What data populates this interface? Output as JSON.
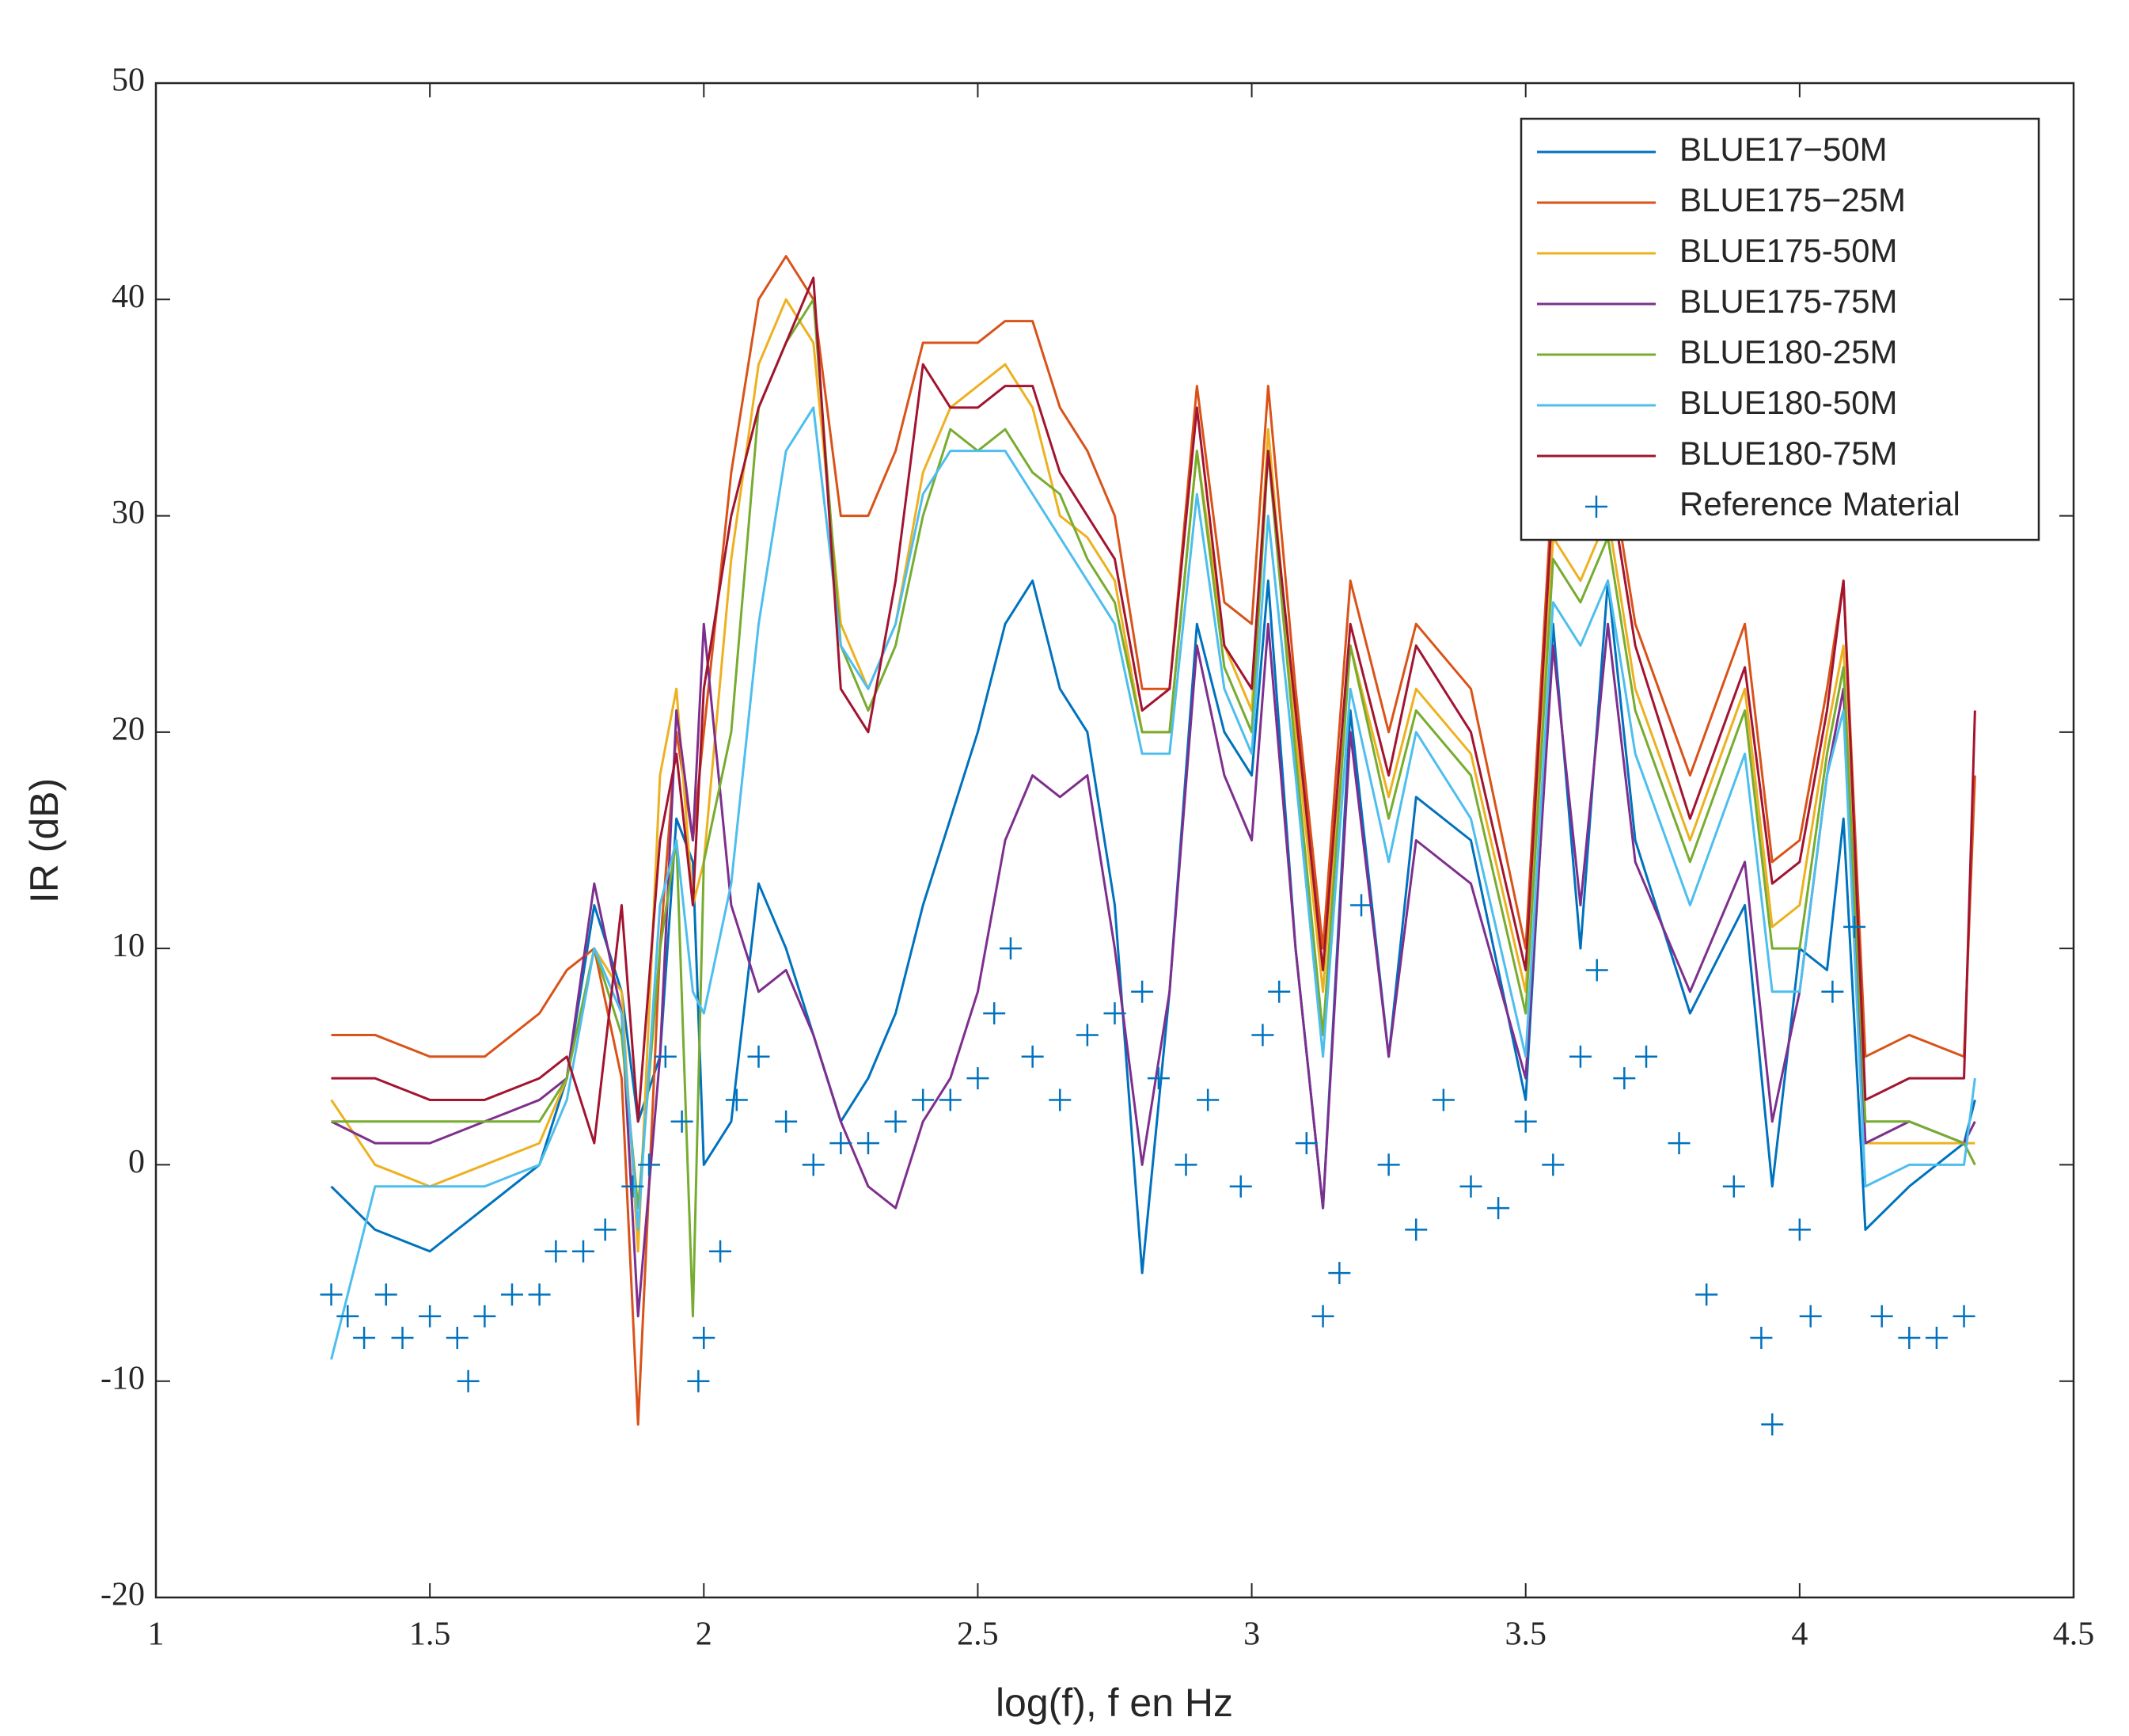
{
  "chart_data": {
    "type": "line",
    "xlabel": "log(f), f en Hz",
    "ylabel": "IR (dB)",
    "xlim": [
      1,
      4.5
    ],
    "xticks": [
      1,
      1.5,
      2,
      2.5,
      3,
      3.5,
      4,
      4.5
    ],
    "ylim": [
      -20,
      50
    ],
    "yticks": [
      -20,
      -10,
      0,
      10,
      20,
      30,
      40,
      50
    ],
    "legend": "upper right",
    "x": [
      1.32,
      1.4,
      1.5,
      1.6,
      1.7,
      1.75,
      1.8,
      1.85,
      1.88,
      1.92,
      1.95,
      1.98,
      2.0,
      2.05,
      2.1,
      2.15,
      2.2,
      2.25,
      2.3,
      2.35,
      2.4,
      2.45,
      2.5,
      2.55,
      2.6,
      2.65,
      2.7,
      2.75,
      2.8,
      2.85,
      2.9,
      2.95,
      3.0,
      3.03,
      3.08,
      3.13,
      3.18,
      3.25,
      3.3,
      3.4,
      3.5,
      3.55,
      3.6,
      3.65,
      3.7,
      3.8,
      3.9,
      3.95,
      4.0,
      4.05,
      4.08,
      4.12,
      4.2,
      4.3,
      4.32
    ],
    "series": [
      {
        "name": "BLUE17−50M",
        "color": "#0072bd",
        "values": [
          -1,
          -3,
          -4,
          -2,
          0,
          4,
          12,
          8,
          2,
          5,
          16,
          14,
          0,
          2,
          13,
          10,
          6,
          2,
          4,
          7,
          12,
          16,
          20,
          25,
          27,
          22,
          20,
          12,
          -5,
          8,
          25,
          20,
          18,
          27,
          10,
          -2,
          21,
          5,
          17,
          15,
          3,
          25,
          10,
          27,
          15,
          7,
          12,
          -1,
          10,
          9,
          16,
          -3,
          -1,
          1,
          3
        ]
      },
      {
        "name": "BLUE175−25M",
        "color": "#d95319",
        "values": [
          6,
          6,
          5,
          5,
          7,
          9,
          10,
          4,
          -12,
          10,
          20,
          15,
          20,
          32,
          40,
          42,
          40,
          30,
          30,
          33,
          38,
          38,
          38,
          39,
          39,
          35,
          33,
          30,
          22,
          22,
          36,
          26,
          25,
          36,
          22,
          10,
          27,
          20,
          25,
          22,
          10,
          32,
          30,
          33,
          25,
          18,
          25,
          14,
          15,
          22,
          27,
          5,
          6,
          5,
          18
        ]
      },
      {
        "name": "BLUE175-50M",
        "color": "#edb120",
        "values": [
          3,
          0,
          -1,
          0,
          1,
          4,
          10,
          8,
          -4,
          18,
          22,
          12,
          14,
          28,
          37,
          40,
          38,
          25,
          22,
          25,
          32,
          35,
          36,
          37,
          35,
          30,
          29,
          27,
          20,
          20,
          33,
          24,
          21,
          34,
          20,
          8,
          24,
          17,
          22,
          19,
          8,
          29,
          27,
          30,
          22,
          15,
          22,
          11,
          12,
          20,
          24,
          1,
          1,
          1,
          1
        ]
      },
      {
        "name": "BLUE175-75M",
        "color": "#7e2f8e",
        "values": [
          2,
          1,
          1,
          2,
          3,
          4,
          13,
          7,
          -7,
          5,
          21,
          15,
          25,
          12,
          8,
          9,
          6,
          2,
          -1,
          -2,
          2,
          4,
          8,
          15,
          18,
          17,
          18,
          10,
          0,
          8,
          24,
          18,
          15,
          25,
          10,
          -2,
          20,
          5,
          15,
          13,
          4,
          24,
          12,
          25,
          14,
          8,
          14,
          2,
          8,
          18,
          22,
          1,
          2,
          1,
          2
        ]
      },
      {
        "name": "BLUE180-25M",
        "color": "#77ac30",
        "values": [
          2,
          2,
          2,
          2,
          2,
          4,
          10,
          6,
          -2,
          10,
          15,
          -7,
          14,
          20,
          35,
          38,
          40,
          24,
          21,
          24,
          30,
          34,
          33,
          34,
          32,
          31,
          28,
          26,
          20,
          20,
          33,
          23,
          20,
          33,
          19,
          6,
          24,
          16,
          21,
          18,
          7,
          28,
          26,
          29,
          21,
          14,
          21,
          10,
          10,
          19,
          23,
          2,
          2,
          1,
          0
        ]
      },
      {
        "name": "BLUE180-50M",
        "color": "#4dbeee",
        "values": [
          -9,
          -1,
          -1,
          -1,
          0,
          3,
          10,
          7,
          -3,
          12,
          15,
          8,
          7,
          13,
          25,
          33,
          35,
          24,
          22,
          25,
          31,
          33,
          33,
          33,
          31,
          29,
          27,
          25,
          19,
          19,
          31,
          22,
          19,
          30,
          18,
          5,
          22,
          14,
          20,
          16,
          5,
          26,
          24,
          27,
          19,
          12,
          19,
          8,
          8,
          18,
          21,
          -1,
          0,
          0,
          4
        ]
      },
      {
        "name": "BLUE180-75M",
        "color": "#a2142f",
        "values": [
          4,
          4,
          3,
          3,
          4,
          5,
          1,
          12,
          2,
          15,
          19,
          12,
          22,
          30,
          35,
          38,
          41,
          22,
          20,
          27,
          37,
          35,
          35,
          36,
          36,
          32,
          30,
          28,
          21,
          22,
          35,
          24,
          22,
          33,
          21,
          9,
          25,
          18,
          24,
          20,
          9,
          31,
          29,
          32,
          24,
          16,
          23,
          13,
          14,
          21,
          27,
          3,
          4,
          4,
          21
        ]
      },
      {
        "name": "Reference Material",
        "color": "#0072bd",
        "marker": "+",
        "x": [
          1.32,
          1.35,
          1.38,
          1.42,
          1.45,
          1.5,
          1.55,
          1.57,
          1.6,
          1.65,
          1.7,
          1.73,
          1.78,
          1.82,
          1.87,
          1.9,
          1.93,
          1.96,
          1.99,
          2.0,
          2.03,
          2.06,
          2.1,
          2.15,
          2.2,
          2.25,
          2.3,
          2.35,
          2.4,
          2.45,
          2.5,
          2.53,
          2.56,
          2.6,
          2.65,
          2.7,
          2.75,
          2.8,
          2.83,
          2.88,
          2.92,
          2.98,
          3.02,
          3.05,
          3.1,
          3.13,
          3.16,
          3.2,
          3.25,
          3.3,
          3.35,
          3.4,
          3.45,
          3.5,
          3.55,
          3.6,
          3.63,
          3.68,
          3.72,
          3.78,
          3.83,
          3.88,
          3.93,
          3.95,
          4.0,
          4.02,
          4.06,
          4.1,
          4.15,
          4.2,
          4.25,
          4.3
        ],
        "values": [
          -6,
          -7,
          -8,
          -6,
          -8,
          -7,
          -8,
          -10,
          -7,
          -6,
          -6,
          -4,
          -4,
          -3,
          -1,
          0,
          5,
          2,
          -10,
          -8,
          -4,
          3,
          5,
          2,
          0,
          1,
          1,
          2,
          3,
          3,
          4,
          7,
          10,
          5,
          3,
          6,
          7,
          8,
          4,
          0,
          3,
          -1,
          6,
          8,
          1,
          -7,
          -5,
          12,
          0,
          -3,
          3,
          -1,
          -2,
          2,
          0,
          5,
          9,
          4,
          5,
          1,
          -6,
          -1,
          -8,
          -12,
          -3,
          -7,
          8,
          11,
          -7,
          -8,
          -8,
          -7
        ]
      }
    ]
  }
}
